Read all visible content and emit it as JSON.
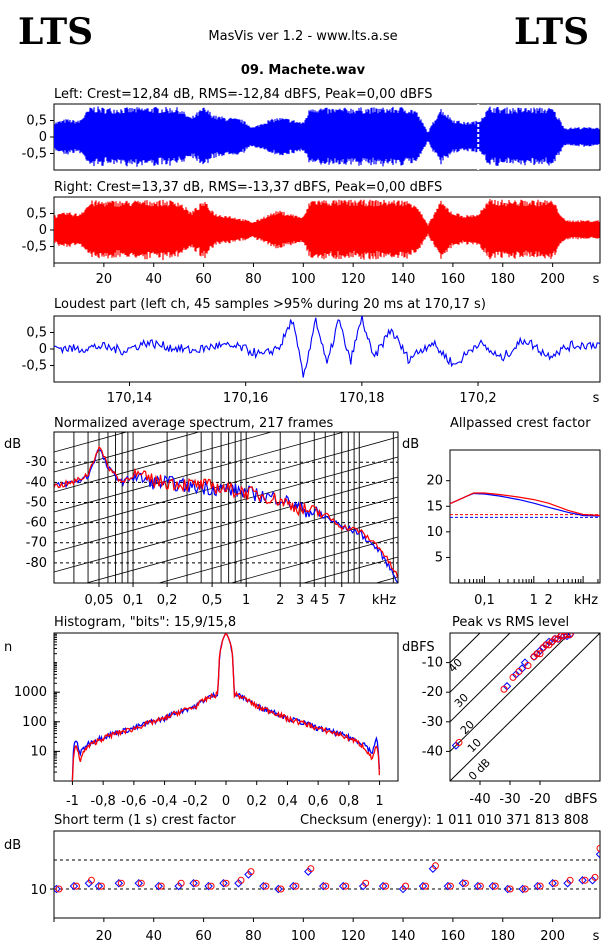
{
  "header": {
    "logo_left": "LTS",
    "logo_right": "LTS",
    "app_title": "MasVis ver 1.2 - www.lts.a.se",
    "file_title": "09. Machete.wav"
  },
  "colors": {
    "left": "#0000ff",
    "right": "#ff0000",
    "axis": "#000000"
  },
  "chart_data": [
    {
      "id": "left-waveform",
      "type": "line",
      "title": "Left: Crest=12,84 dB, RMS=-12,84 dBFS, Peak=0,00 dBFS",
      "ytick_labels": [
        "0,5",
        "0",
        "-0,5"
      ],
      "ylim": [
        -1,
        1
      ],
      "xlim": [
        0,
        219
      ],
      "loudest_marker_s": 170.17,
      "envelope": {
        "t": [
          0,
          5,
          10,
          15,
          20,
          30,
          40,
          50,
          55,
          60,
          65,
          70,
          75,
          80,
          85,
          90,
          95,
          100,
          103,
          110,
          120,
          130,
          140,
          145,
          150,
          155,
          160,
          165,
          170,
          175,
          180,
          190,
          200,
          205,
          210,
          219
        ],
        "amp": [
          0.45,
          0.55,
          0.5,
          0.95,
          0.9,
          0.9,
          0.92,
          0.9,
          0.6,
          0.92,
          0.65,
          0.6,
          0.55,
          0.3,
          0.5,
          0.6,
          0.55,
          0.45,
          0.95,
          0.88,
          0.9,
          0.9,
          0.92,
          0.85,
          0.15,
          0.9,
          0.55,
          0.45,
          0.5,
          0.95,
          0.9,
          0.9,
          0.9,
          0.28,
          0.3,
          0.3
        ]
      }
    },
    {
      "id": "right-waveform",
      "type": "line",
      "title": "Right: Crest=13,37 dB, RMS=-13,37 dBFS, Peak=0,00 dBFS",
      "ytick_labels": [
        "0,5",
        "0",
        "-0,5"
      ],
      "ylim": [
        -1,
        1
      ],
      "xlim": [
        0,
        219
      ],
      "x_ticks": [
        20,
        40,
        60,
        80,
        100,
        120,
        140,
        160,
        180,
        200
      ],
      "x_unit": "s",
      "envelope": {
        "t": [
          0,
          5,
          10,
          15,
          20,
          30,
          40,
          50,
          55,
          60,
          65,
          70,
          75,
          80,
          85,
          90,
          95,
          100,
          103,
          110,
          120,
          130,
          140,
          145,
          150,
          155,
          160,
          165,
          170,
          175,
          180,
          190,
          200,
          205,
          210,
          219
        ],
        "amp": [
          0.45,
          0.55,
          0.5,
          0.9,
          0.9,
          0.9,
          0.92,
          0.9,
          0.55,
          0.9,
          0.5,
          0.45,
          0.35,
          0.25,
          0.45,
          0.6,
          0.5,
          0.4,
          0.95,
          0.92,
          0.92,
          0.92,
          0.92,
          0.85,
          0.15,
          0.9,
          0.55,
          0.45,
          0.5,
          0.95,
          0.92,
          0.92,
          0.92,
          0.3,
          0.3,
          0.3
        ]
      }
    },
    {
      "id": "loudest-part",
      "type": "line",
      "title": "Loudest part (left  ch, 45 samples >95% during 20 ms at 170,17 s)",
      "ytick_labels": [
        "0,5",
        "0",
        "-0,5"
      ],
      "ylim": [
        -1,
        1
      ],
      "xlim": [
        170.127,
        170.221
      ],
      "x_ticks": [
        170.14,
        170.16,
        170.18,
        170.2
      ],
      "x_tick_labels": [
        "170,14",
        "170,16",
        "170,18",
        "170,2"
      ],
      "x_unit": "s",
      "points": {
        "t": [
          170.127,
          170.131,
          170.135,
          170.139,
          170.143,
          170.147,
          170.151,
          170.155,
          170.159,
          170.163,
          170.166,
          170.168,
          170.17,
          170.172,
          170.174,
          170.176,
          170.178,
          170.18,
          170.182,
          170.185,
          170.188,
          170.192,
          170.196,
          170.2,
          170.204,
          170.208,
          170.212,
          170.216,
          170.221
        ],
        "v": [
          0.05,
          0.0,
          0.08,
          -0.05,
          0.2,
          0.05,
          -0.05,
          0.1,
          0.05,
          -0.2,
          0.1,
          0.9,
          -0.9,
          0.95,
          -0.5,
          0.9,
          -0.4,
          0.95,
          -0.3,
          0.6,
          -0.3,
          0.2,
          -0.5,
          0.2,
          -0.3,
          0.3,
          -0.2,
          0.1,
          0.15
        ]
      }
    },
    {
      "id": "normalized-spectrum",
      "type": "line",
      "title": "Normalized average spectrum, 217 frames",
      "ylabel": "dB",
      "ytick_labels": [
        "-30",
        "-40",
        "-50",
        "-60",
        "-70",
        "-80"
      ],
      "ylim": [
        -90,
        -15
      ],
      "x_scale": "log",
      "xlim": [
        0.02,
        22
      ],
      "x_unit": "kHz",
      "x_tick_labels": [
        "0,05",
        "0,1",
        "0,2",
        "0,5",
        "1",
        "2",
        "3",
        "4",
        "5",
        "7"
      ],
      "series": [
        {
          "color": "left",
          "x": [
            0.02,
            0.03,
            0.04,
            0.05,
            0.06,
            0.08,
            0.1,
            0.15,
            0.2,
            0.3,
            0.5,
            0.8,
            1,
            1.5,
            2,
            3,
            5,
            7,
            10,
            15,
            22
          ],
          "y": [
            -42,
            -40,
            -37,
            -23,
            -33,
            -40,
            -37,
            -40,
            -40,
            -42,
            -43,
            -44,
            -45,
            -47,
            -48,
            -53,
            -57,
            -62,
            -65,
            -74,
            -89
          ]
        },
        {
          "color": "right",
          "x": [
            0.02,
            0.03,
            0.04,
            0.05,
            0.06,
            0.08,
            0.1,
            0.15,
            0.2,
            0.3,
            0.5,
            0.8,
            1,
            1.5,
            2,
            3,
            5,
            7,
            10,
            15,
            22
          ],
          "y": [
            -42,
            -40,
            -36,
            -22,
            -32,
            -40,
            -36,
            -39,
            -40,
            -41,
            -42,
            -44,
            -45,
            -47,
            -49,
            -53,
            -56,
            -62,
            -64,
            -72,
            -87
          ]
        }
      ]
    },
    {
      "id": "allpassed-crest",
      "type": "line",
      "title": "Allpassed crest factor",
      "ylabel": "dB",
      "ytick_labels": [
        "20",
        "15",
        "10",
        "5"
      ],
      "ylim": [
        0,
        26
      ],
      "x_scale": "log",
      "xlim": [
        0.02,
        22
      ],
      "x_tick_labels": [
        "0,1",
        "1",
        "2"
      ],
      "x_unit": "kHz",
      "reference_db": [
        12.84,
        13.37
      ],
      "series": [
        {
          "color": "left",
          "x": [
            0.02,
            0.04,
            0.06,
            0.1,
            0.2,
            0.5,
            1,
            2,
            5,
            10,
            22
          ],
          "y": [
            15.5,
            16.8,
            17.5,
            17.4,
            17.0,
            16.3,
            15.6,
            14.8,
            13.8,
            13.2,
            13.1
          ]
        },
        {
          "color": "right",
          "x": [
            0.02,
            0.04,
            0.06,
            0.1,
            0.2,
            0.5,
            1,
            2,
            5,
            10,
            22
          ],
          "y": [
            15.5,
            16.8,
            17.6,
            17.6,
            17.3,
            16.8,
            16.3,
            15.6,
            14.2,
            13.4,
            13.2
          ]
        }
      ]
    },
    {
      "id": "histogram",
      "type": "line",
      "title": "Histogram, \"bits\": 15,9/15,8",
      "ylabel": "n",
      "ytick_labels": [
        "1000",
        "100",
        "10"
      ],
      "y_scale": "log",
      "ylim": [
        1,
        100000
      ],
      "xlim": [
        -1.12,
        1.12
      ],
      "x_ticks": [
        -1,
        -0.8,
        -0.6,
        -0.4,
        -0.2,
        0,
        0.2,
        0.4,
        0.6,
        0.8,
        1
      ],
      "x_tick_labels": [
        "-1",
        "-0,8",
        "-0,6",
        "-0,4",
        "-0,2",
        "0",
        "0,2",
        "0,4",
        "0,6",
        "0,8",
        "1"
      ],
      "series": [
        {
          "color": "left",
          "x": [
            -1,
            -0.98,
            -0.95,
            -0.9,
            -0.8,
            -0.6,
            -0.4,
            -0.2,
            -0.05,
            0,
            0.05,
            0.2,
            0.4,
            0.6,
            0.8,
            0.9,
            0.95,
            0.98,
            1
          ],
          "y": [
            1,
            25,
            8,
            18,
            30,
            60,
            130,
            330,
            900,
            100000,
            900,
            330,
            130,
            60,
            30,
            18,
            8,
            25,
            1
          ]
        },
        {
          "color": "right",
          "x": [
            -1,
            -0.98,
            -0.95,
            -0.9,
            -0.8,
            -0.6,
            -0.4,
            -0.2,
            -0.05,
            0,
            0.05,
            0.2,
            0.4,
            0.6,
            0.8,
            0.9,
            0.95,
            0.98,
            1
          ],
          "y": [
            1,
            15,
            5,
            14,
            28,
            58,
            125,
            320,
            880,
            100000,
            880,
            320,
            125,
            58,
            28,
            14,
            5,
            15,
            1
          ]
        }
      ]
    },
    {
      "id": "peak-vs-rms",
      "type": "scatter",
      "title": "Peak vs RMS level",
      "ylabel": "dBFS",
      "xlabel": "dBFS",
      "ytick_labels": [
        "-10",
        "-20",
        "-30",
        "-40"
      ],
      "x_tick_labels": [
        "-40",
        "-30",
        "-20"
      ],
      "xlim": [
        -50,
        0
      ],
      "ylim": [
        -50,
        0
      ],
      "crest_lines": [
        "0 dB",
        "10",
        "20",
        "30",
        "40"
      ],
      "series": [
        {
          "color": "left",
          "x": [
            -48,
            -31,
            -28,
            -26,
            -25,
            -22,
            -21,
            -20,
            -19,
            -18,
            -17,
            -16,
            -15,
            -14,
            -13,
            -12,
            -11,
            -10
          ],
          "y": [
            -38,
            -18,
            -14,
            -12,
            -10,
            -8,
            -7,
            -6,
            -5,
            -4,
            -3,
            -3,
            -2,
            -2,
            -1,
            -1,
            -1,
            -0.5
          ]
        },
        {
          "color": "right",
          "x": [
            -47,
            -32,
            -29,
            -27,
            -24,
            -22,
            -21,
            -20,
            -19,
            -18,
            -17,
            -16,
            -15,
            -14,
            -13,
            -12,
            -11,
            -10
          ],
          "y": [
            -37,
            -19,
            -15,
            -13,
            -11,
            -8,
            -7,
            -7,
            -5,
            -4,
            -4,
            -3,
            -2,
            -2,
            -1,
            -1,
            -0.5,
            -0.5
          ]
        }
      ]
    },
    {
      "id": "short-term-crest",
      "type": "scatter",
      "title": "Short term (1 s) crest factor",
      "ylabel": "dB",
      "ytick_labels": [
        "10"
      ],
      "ylim": [
        0,
        30
      ],
      "xlim": [
        0,
        219
      ],
      "x_ticks": [
        20,
        40,
        60,
        80,
        100,
        120,
        140,
        160,
        180,
        200
      ],
      "x_unit": "s",
      "dashed_levels": [
        10,
        20
      ],
      "checksum": "Checksum (energy):  1 011 010 371 813 808",
      "series": [
        {
          "color": "left",
          "x": [
            1,
            8,
            14,
            18,
            26,
            34,
            42,
            50,
            56,
            62,
            68,
            74,
            78,
            84,
            90,
            96,
            102,
            108,
            116,
            124,
            132,
            140,
            148,
            152,
            158,
            164,
            170,
            176,
            182,
            188,
            194,
            200,
            206,
            212,
            216,
            219
          ],
          "y": [
            10,
            11,
            12,
            11,
            12,
            12,
            11,
            11,
            12,
            11,
            12,
            12,
            15,
            11,
            10,
            11,
            16,
            11,
            11,
            11,
            11,
            10,
            11,
            17,
            11,
            12,
            11,
            11,
            10,
            10,
            11,
            12,
            12,
            13,
            13,
            22
          ]
        },
        {
          "color": "right",
          "x": [
            2,
            9,
            15,
            19,
            27,
            35,
            43,
            51,
            57,
            63,
            69,
            75,
            79,
            85,
            91,
            97,
            103,
            109,
            117,
            125,
            133,
            141,
            149,
            153,
            159,
            165,
            171,
            177,
            183,
            189,
            195,
            201,
            207,
            213,
            217,
            219
          ],
          "y": [
            10,
            11,
            13,
            11,
            12,
            12,
            11,
            12,
            12,
            11,
            12,
            13,
            16,
            11,
            10,
            11,
            17,
            11,
            11,
            12,
            11,
            11,
            11,
            18,
            11,
            12,
            11,
            11,
            10,
            10,
            11,
            12,
            13,
            13,
            14,
            24
          ]
        }
      ]
    }
  ]
}
